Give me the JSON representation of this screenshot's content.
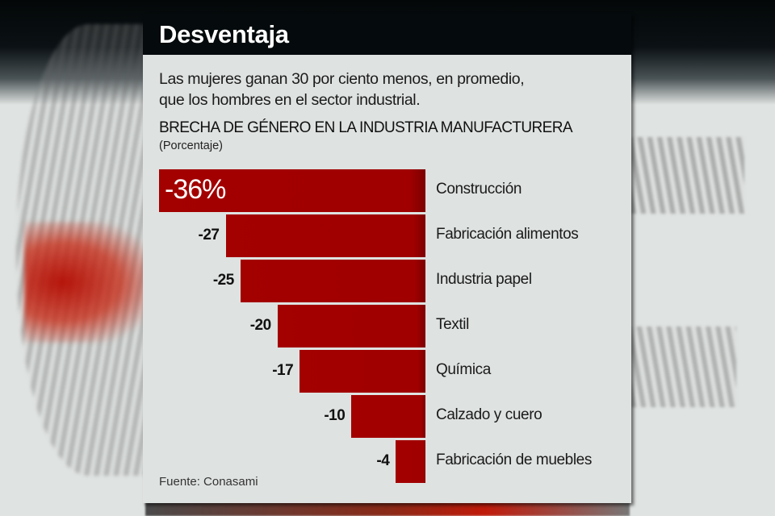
{
  "header": {
    "title": "Desventaja"
  },
  "subtitle": {
    "line1": "Las mujeres ganan 30 por ciento menos, en promedio,",
    "line2": "que los hombres en el sector industrial."
  },
  "source": "Fuente: Conasami",
  "colors": {
    "bar": "#a00000",
    "header_bg": "#050a0c",
    "panel_bg": "#dee2e0"
  },
  "chart_data": {
    "type": "bar",
    "orientation": "horizontal",
    "title": "BRECHA DE GÉNERO EN LA INDUSTRIA MANUFACTURERA",
    "subtitle": "(Porcentaje)",
    "xlabel": "",
    "ylabel": "",
    "categories": [
      "Construcción",
      "Fabricación alimentos",
      "Industria papel",
      "Textil",
      "Química",
      "Calzado y cuero",
      "Fabricación de muebles"
    ],
    "values": [
      -36,
      -27,
      -25,
      -20,
      -17,
      -10,
      -4
    ],
    "value_labels": [
      "-36%",
      "-27",
      "-25",
      "-20",
      "-17",
      "-10",
      "-4"
    ],
    "xlim": [
      -36,
      0
    ],
    "grid": false,
    "legend": "none"
  }
}
